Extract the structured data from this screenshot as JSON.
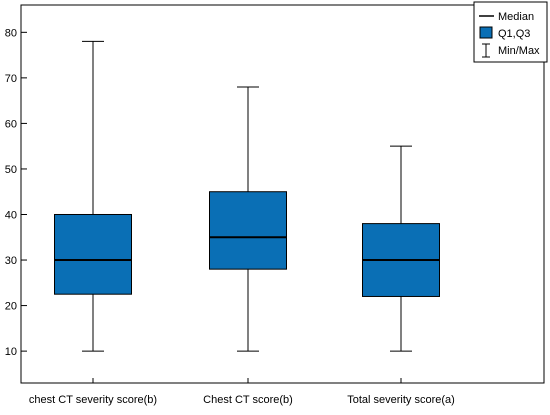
{
  "chart_data": {
    "type": "boxplot",
    "title": "",
    "xlabel": "",
    "ylabel": "",
    "categories": [
      "chest CT severity score(b)",
      "Chest CT score(b)",
      "Total severity score(a)"
    ],
    "boxes": [
      {
        "min": 10,
        "q1": 22.5,
        "median": 30,
        "q3": 40,
        "max": 78
      },
      {
        "min": 10,
        "q1": 28,
        "median": 35,
        "q3": 45,
        "max": 68
      },
      {
        "min": 10,
        "q1": 22,
        "median": 30,
        "q3": 38,
        "max": 55
      }
    ],
    "yticks": [
      10,
      20,
      30,
      40,
      50,
      60,
      70,
      80
    ],
    "ylim": [
      3,
      86
    ],
    "grid": false,
    "legend": {
      "placement": "top-right",
      "entries": [
        {
          "key": "median",
          "label": "Median"
        },
        {
          "key": "box",
          "label": "Q1,Q3"
        },
        {
          "key": "whisker",
          "label": "Min/Max"
        }
      ]
    },
    "colors": {
      "box_fill": "#0a6fb5",
      "box_stroke": "#000000",
      "axis": "#000000",
      "background": "#ffffff"
    }
  }
}
